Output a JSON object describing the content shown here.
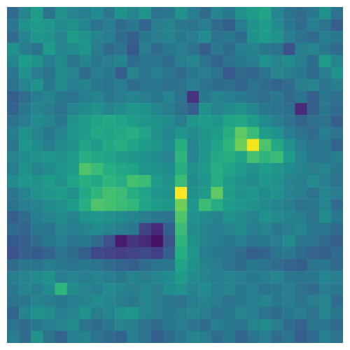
{
  "chart_data": {
    "type": "heatmap",
    "tick_labels": false,
    "zlim": [
      0,
      1
    ],
    "values": [
      [
        0.35,
        0.45,
        0.55,
        0.38,
        0.5,
        0.45,
        0.42,
        0.48,
        0.4,
        0.5,
        0.45,
        0.52,
        0.38,
        0.4,
        0.5,
        0.42,
        0.35,
        0.45,
        0.4,
        0.5,
        0.55,
        0.58,
        0.45,
        0.38,
        0.35,
        0.4,
        0.5,
        0.38
      ],
      [
        0.4,
        0.5,
        0.55,
        0.52,
        0.48,
        0.5,
        0.45,
        0.38,
        0.42,
        0.35,
        0.4,
        0.32,
        0.42,
        0.45,
        0.4,
        0.38,
        0.42,
        0.35,
        0.3,
        0.42,
        0.5,
        0.55,
        0.48,
        0.4,
        0.35,
        0.42,
        0.38,
        0.3
      ],
      [
        0.35,
        0.45,
        0.52,
        0.5,
        0.45,
        0.55,
        0.5,
        0.45,
        0.42,
        0.35,
        0.3,
        0.4,
        0.42,
        0.45,
        0.4,
        0.42,
        0.48,
        0.38,
        0.4,
        0.35,
        0.5,
        0.55,
        0.5,
        0.42,
        0.38,
        0.35,
        0.42,
        0.4
      ],
      [
        0.5,
        0.42,
        0.38,
        0.55,
        0.45,
        0.48,
        0.52,
        0.42,
        0.35,
        0.38,
        0.28,
        0.42,
        0.35,
        0.4,
        0.42,
        0.38,
        0.3,
        0.4,
        0.35,
        0.42,
        0.45,
        0.4,
        0.38,
        0.25,
        0.42,
        0.45,
        0.4,
        0.35
      ],
      [
        0.45,
        0.55,
        0.5,
        0.42,
        0.48,
        0.38,
        0.45,
        0.4,
        0.42,
        0.45,
        0.35,
        0.38,
        0.4,
        0.35,
        0.42,
        0.45,
        0.38,
        0.32,
        0.38,
        0.4,
        0.42,
        0.5,
        0.45,
        0.48,
        0.42,
        0.35,
        0.55,
        0.45
      ],
      [
        0.4,
        0.5,
        0.42,
        0.38,
        0.48,
        0.45,
        0.35,
        0.42,
        0.4,
        0.3,
        0.45,
        0.38,
        0.42,
        0.38,
        0.35,
        0.4,
        0.42,
        0.38,
        0.28,
        0.35,
        0.32,
        0.38,
        0.45,
        0.42,
        0.4,
        0.35,
        0.42,
        0.5
      ],
      [
        0.38,
        0.45,
        0.5,
        0.4,
        0.48,
        0.42,
        0.45,
        0.4,
        0.38,
        0.42,
        0.35,
        0.38,
        0.4,
        0.36,
        0.38,
        0.42,
        0.38,
        0.35,
        0.36,
        0.32,
        0.38,
        0.35,
        0.32,
        0.35,
        0.42,
        0.45,
        0.38,
        0.42
      ],
      [
        0.3,
        0.36,
        0.42,
        0.45,
        0.4,
        0.38,
        0.42,
        0.45,
        0.4,
        0.42,
        0.45,
        0.42,
        0.4,
        0.45,
        0.38,
        0.15,
        0.4,
        0.45,
        0.42,
        0.4,
        0.38,
        0.36,
        0.4,
        0.34,
        0.38,
        0.3,
        0.4,
        0.36
      ],
      [
        0.32,
        0.4,
        0.45,
        0.42,
        0.38,
        0.45,
        0.48,
        0.5,
        0.45,
        0.48,
        0.52,
        0.5,
        0.46,
        0.42,
        0.36,
        0.3,
        0.5,
        0.45,
        0.48,
        0.5,
        0.45,
        0.4,
        0.38,
        0.36,
        0.12,
        0.3,
        0.4,
        0.35
      ],
      [
        0.38,
        0.42,
        0.48,
        0.45,
        0.4,
        0.5,
        0.55,
        0.58,
        0.6,
        0.58,
        0.55,
        0.52,
        0.5,
        0.48,
        0.42,
        0.52,
        0.55,
        0.52,
        0.58,
        0.6,
        0.55,
        0.48,
        0.42,
        0.38,
        0.32,
        0.36,
        0.38,
        0.3
      ],
      [
        0.42,
        0.5,
        0.45,
        0.4,
        0.45,
        0.52,
        0.55,
        0.6,
        0.58,
        0.6,
        0.62,
        0.58,
        0.5,
        0.45,
        0.52,
        0.48,
        0.52,
        0.55,
        0.62,
        0.75,
        0.68,
        0.55,
        0.5,
        0.42,
        0.38,
        0.35,
        0.42,
        0.38
      ],
      [
        0.4,
        0.52,
        0.48,
        0.42,
        0.48,
        0.5,
        0.58,
        0.55,
        0.6,
        0.62,
        0.58,
        0.55,
        0.52,
        0.48,
        0.62,
        0.45,
        0.52,
        0.58,
        0.65,
        0.78,
        0.98,
        0.72,
        0.6,
        0.5,
        0.42,
        0.38,
        0.4,
        0.32
      ],
      [
        0.45,
        0.48,
        0.5,
        0.52,
        0.5,
        0.55,
        0.62,
        0.6,
        0.58,
        0.55,
        0.52,
        0.5,
        0.48,
        0.45,
        0.65,
        0.45,
        0.52,
        0.6,
        0.62,
        0.58,
        0.7,
        0.65,
        0.68,
        0.55,
        0.45,
        0.4,
        0.38,
        0.42
      ],
      [
        0.42,
        0.5,
        0.45,
        0.48,
        0.52,
        0.55,
        0.72,
        0.68,
        0.62,
        0.6,
        0.58,
        0.52,
        0.5,
        0.48,
        0.62,
        0.5,
        0.55,
        0.62,
        0.58,
        0.55,
        0.5,
        0.55,
        0.52,
        0.48,
        0.45,
        0.42,
        0.45,
        0.4
      ],
      [
        0.48,
        0.52,
        0.5,
        0.55,
        0.5,
        0.58,
        0.62,
        0.6,
        0.65,
        0.62,
        0.7,
        0.68,
        0.55,
        0.5,
        0.68,
        0.48,
        0.52,
        0.62,
        0.55,
        0.5,
        0.48,
        0.52,
        0.5,
        0.45,
        0.42,
        0.48,
        0.42,
        0.38
      ],
      [
        0.4,
        0.45,
        0.5,
        0.52,
        0.55,
        0.5,
        0.6,
        0.65,
        0.7,
        0.68,
        0.62,
        0.58,
        0.52,
        0.5,
        1.0,
        0.5,
        0.55,
        0.75,
        0.55,
        0.5,
        0.52,
        0.48,
        0.5,
        0.45,
        0.42,
        0.38,
        0.45,
        0.42
      ],
      [
        0.38,
        0.42,
        0.45,
        0.48,
        0.5,
        0.55,
        0.62,
        0.72,
        0.7,
        0.68,
        0.66,
        0.58,
        0.55,
        0.52,
        0.78,
        0.52,
        0.68,
        0.62,
        0.55,
        0.52,
        0.5,
        0.48,
        0.45,
        0.42,
        0.38,
        0.4,
        0.45,
        0.35
      ],
      [
        0.3,
        0.35,
        0.42,
        0.45,
        0.48,
        0.45,
        0.5,
        0.52,
        0.5,
        0.48,
        0.45,
        0.42,
        0.4,
        0.38,
        0.72,
        0.5,
        0.48,
        0.45,
        0.5,
        0.48,
        0.45,
        0.5,
        0.48,
        0.45,
        0.42,
        0.38,
        0.48,
        0.4
      ],
      [
        0.35,
        0.32,
        0.4,
        0.38,
        0.45,
        0.42,
        0.45,
        0.48,
        0.45,
        0.42,
        0.4,
        0.2,
        0.12,
        0.3,
        0.68,
        0.48,
        0.45,
        0.42,
        0.45,
        0.48,
        0.42,
        0.45,
        0.4,
        0.42,
        0.45,
        0.4,
        0.38,
        0.35
      ],
      [
        0.28,
        0.3,
        0.35,
        0.4,
        0.42,
        0.38,
        0.4,
        0.35,
        0.25,
        0.08,
        0.15,
        0.12,
        0.05,
        0.25,
        0.65,
        0.5,
        0.45,
        0.42,
        0.4,
        0.42,
        0.38,
        0.4,
        0.42,
        0.48,
        0.4,
        0.38,
        0.35,
        0.3
      ],
      [
        0.25,
        0.3,
        0.28,
        0.32,
        0.38,
        0.35,
        0.3,
        0.22,
        0.2,
        0.18,
        0.2,
        0.22,
        0.18,
        0.3,
        0.62,
        0.52,
        0.42,
        0.4,
        0.38,
        0.35,
        0.3,
        0.32,
        0.38,
        0.4,
        0.35,
        0.32,
        0.3,
        0.35
      ],
      [
        0.35,
        0.4,
        0.38,
        0.42,
        0.4,
        0.38,
        0.4,
        0.38,
        0.35,
        0.32,
        0.3,
        0.35,
        0.38,
        0.4,
        0.58,
        0.5,
        0.45,
        0.42,
        0.38,
        0.35,
        0.4,
        0.38,
        0.35,
        0.32,
        0.3,
        0.38,
        0.4,
        0.35
      ],
      [
        0.42,
        0.45,
        0.48,
        0.5,
        0.42,
        0.45,
        0.42,
        0.45,
        0.42,
        0.4,
        0.45,
        0.42,
        0.45,
        0.48,
        0.55,
        0.48,
        0.45,
        0.42,
        0.45,
        0.42,
        0.4,
        0.42,
        0.45,
        0.4,
        0.38,
        0.4,
        0.45,
        0.42
      ],
      [
        0.4,
        0.45,
        0.42,
        0.48,
        0.65,
        0.48,
        0.45,
        0.42,
        0.48,
        0.45,
        0.42,
        0.45,
        0.42,
        0.48,
        0.5,
        0.45,
        0.48,
        0.42,
        0.45,
        0.4,
        0.42,
        0.38,
        0.4,
        0.42,
        0.38,
        0.35,
        0.42,
        0.4
      ],
      [
        0.38,
        0.4,
        0.45,
        0.42,
        0.4,
        0.42,
        0.45,
        0.48,
        0.45,
        0.42,
        0.4,
        0.45,
        0.42,
        0.4,
        0.38,
        0.42,
        0.45,
        0.42,
        0.38,
        0.4,
        0.42,
        0.45,
        0.4,
        0.42,
        0.38,
        0.42,
        0.45,
        0.35
      ],
      [
        0.32,
        0.45,
        0.5,
        0.48,
        0.42,
        0.45,
        0.5,
        0.42,
        0.45,
        0.5,
        0.52,
        0.45,
        0.42,
        0.4,
        0.42,
        0.45,
        0.42,
        0.38,
        0.4,
        0.45,
        0.42,
        0.38,
        0.35,
        0.4,
        0.42,
        0.38,
        0.45,
        0.4
      ],
      [
        0.38,
        0.35,
        0.4,
        0.42,
        0.45,
        0.48,
        0.38,
        0.35,
        0.4,
        0.45,
        0.42,
        0.38,
        0.35,
        0.4,
        0.42,
        0.38,
        0.35,
        0.42,
        0.4,
        0.38,
        0.45,
        0.48,
        0.42,
        0.35,
        0.32,
        0.38,
        0.4,
        0.35
      ],
      [
        0.42,
        0.35,
        0.5,
        0.38,
        0.32,
        0.42,
        0.45,
        0.38,
        0.35,
        0.32,
        0.42,
        0.38,
        0.3,
        0.35,
        0.4,
        0.45,
        0.42,
        0.35,
        0.4,
        0.32,
        0.38,
        0.42,
        0.35,
        0.38,
        0.3,
        0.35,
        0.42,
        0.38
      ]
    ]
  }
}
